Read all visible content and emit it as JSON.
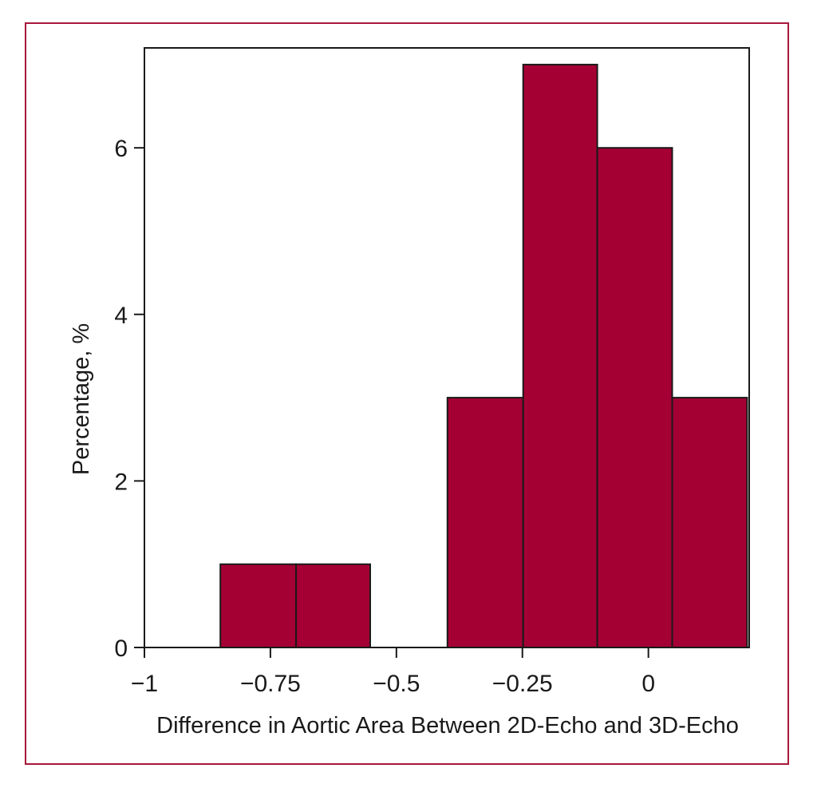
{
  "chart_data": {
    "type": "bar",
    "subtype": "histogram",
    "title": "",
    "xlabel": "Difference in Aortic Area Between 2D-Echo and 3D-Echo",
    "ylabel": "Percentage, %",
    "xlim": [
      -1,
      0.2
    ],
    "ylim": [
      0,
      7.2
    ],
    "grid": false,
    "legend": "none",
    "bar_color": "#a50034",
    "bar_edge_color": "#1a1a1a",
    "frame_color": "#a8183a",
    "x_ticks": [
      {
        "value": -1,
        "label": "−1"
      },
      {
        "value": -0.75,
        "label": "−0.75"
      },
      {
        "value": -0.5,
        "label": "−0.5"
      },
      {
        "value": -0.25,
        "label": "−0.25"
      },
      {
        "value": 0,
        "label": "0"
      }
    ],
    "y_ticks": [
      {
        "value": 0,
        "label": "0"
      },
      {
        "value": 2,
        "label": "2"
      },
      {
        "value": 4,
        "label": "4"
      },
      {
        "value": 6,
        "label": "6"
      }
    ],
    "bins": [
      {
        "x0": -0.8493,
        "x1": -0.6991,
        "value": 1
      },
      {
        "x0": -0.6991,
        "x1": -0.5521,
        "value": 1
      },
      {
        "x0": -0.5521,
        "x1": -0.3987,
        "value": 0
      },
      {
        "x0": -0.3987,
        "x1": -0.2485,
        "value": 3
      },
      {
        "x0": -0.2485,
        "x1": -0.1014,
        "value": 7
      },
      {
        "x0": -0.1014,
        "x1": 0.0472,
        "value": 6
      },
      {
        "x0": 0.0472,
        "x1": 0.1958,
        "value": 3
      }
    ]
  }
}
